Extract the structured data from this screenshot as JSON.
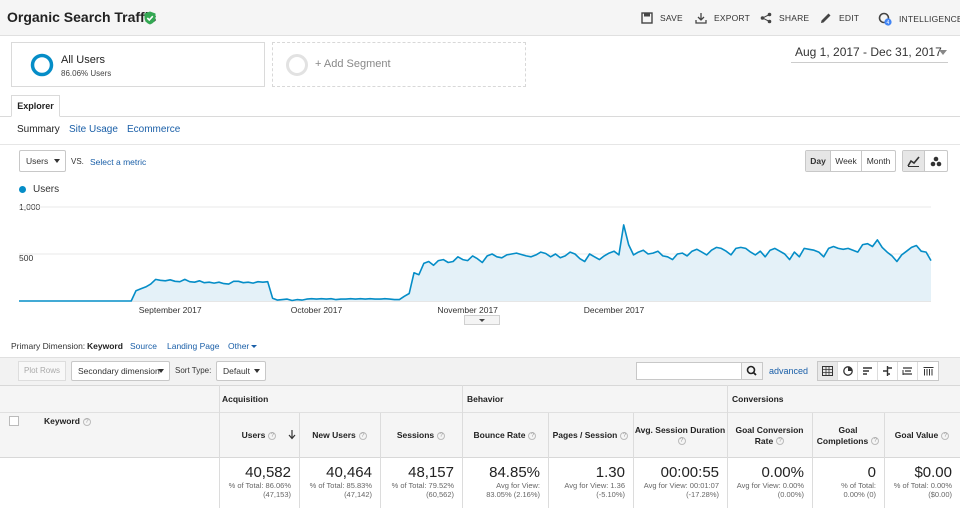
{
  "header": {
    "title": "Organic Search Traffic",
    "actions": [
      {
        "label": "SAVE",
        "icon": "save-icon"
      },
      {
        "label": "EXPORT",
        "icon": "export-icon"
      },
      {
        "label": "SHARE",
        "icon": "share-icon"
      },
      {
        "label": "EDIT",
        "icon": "pencil-icon"
      },
      {
        "label": "INTELLIGENCE",
        "icon": "intelligence-icon",
        "badge": "4"
      }
    ]
  },
  "segments": {
    "active": {
      "name": "All Users",
      "sub": "86.06% Users"
    },
    "add_label": "+ Add Segment"
  },
  "date_range": "Aug 1, 2017 - Dec 31, 2017",
  "tabs": {
    "explorer": "Explorer",
    "subtabs": [
      "Summary",
      "Site Usage",
      "Ecommerce"
    ]
  },
  "chart_controls": {
    "metric": "Users",
    "vs": "VS.",
    "select_metric": "Select a metric",
    "granularity": [
      "Day",
      "Week",
      "Month"
    ],
    "selected_granularity": "Day"
  },
  "chart_data": {
    "type": "area",
    "series": [
      {
        "name": "Users",
        "color": "#058dc7"
      }
    ],
    "y_ticks": [
      "1,000",
      "500"
    ],
    "x_ticks": [
      "September 2017",
      "October 2017",
      "November 2017",
      "December 2017"
    ],
    "ylim": [
      0,
      1000
    ],
    "x_start": "2017-08-01",
    "daily_values": [
      0,
      0,
      0,
      0,
      0,
      0,
      0,
      0,
      0,
      0,
      0,
      0,
      0,
      0,
      0,
      0,
      0,
      0,
      0,
      0,
      0,
      0,
      0,
      0,
      110,
      130,
      150,
      180,
      230,
      220,
      215,
      225,
      210,
      205,
      230,
      205,
      200,
      215,
      195,
      200,
      190,
      200,
      185,
      180,
      210,
      210,
      195,
      200,
      190,
      205,
      200,
      205,
      30,
      10,
      15,
      20,
      5,
      15,
      10,
      20,
      25,
      20,
      25,
      20,
      25,
      15,
      20,
      20,
      25,
      20,
      25,
      20,
      25,
      20,
      20,
      25,
      20,
      15,
      15,
      50,
      80,
      300,
      280,
      400,
      420,
      380,
      430,
      440,
      410,
      420,
      470,
      440,
      430,
      480,
      450,
      410,
      480,
      500,
      470,
      460,
      490,
      500,
      510,
      495,
      480,
      470,
      490,
      520,
      505,
      470,
      500,
      460,
      480,
      520,
      500,
      450,
      420,
      500,
      470,
      440,
      480,
      510,
      530,
      490,
      810,
      600,
      490,
      520,
      540,
      500,
      510,
      530,
      480,
      470,
      440,
      500,
      510,
      480,
      530,
      550,
      520,
      490,
      540,
      570,
      560,
      530,
      490,
      560,
      570,
      560,
      520,
      490,
      530,
      470,
      540,
      560,
      530,
      500,
      440,
      520,
      470,
      560,
      550,
      540,
      520,
      470,
      560,
      580,
      560,
      550,
      560,
      540,
      520,
      600,
      610,
      580,
      650,
      570,
      520,
      480,
      420,
      490,
      530,
      570,
      590,
      530,
      520,
      430
    ]
  },
  "primary_dimension": {
    "label": "Primary Dimension:",
    "options": [
      "Keyword",
      "Source",
      "Landing Page",
      "Other"
    ],
    "selected": "Keyword"
  },
  "table_toolbar": {
    "plot_rows": "Plot Rows",
    "secondary_dimension": "Secondary dimension",
    "sort_type_label": "Sort Type:",
    "sort_type_value": "Default",
    "advanced": "advanced"
  },
  "table": {
    "dimension_header": "Keyword",
    "groups": [
      "Acquisition",
      "Behavior",
      "Conversions"
    ],
    "columns": [
      {
        "label": "Users",
        "value": "40,582",
        "sub1": "% of Total: 86.06%",
        "sub2": "(47,153)"
      },
      {
        "label": "New Users",
        "value": "40,464",
        "sub1": "% of Total: 85.83%",
        "sub2": "(47,142)"
      },
      {
        "label": "Sessions",
        "value": "48,157",
        "sub1": "% of Total: 79.52%",
        "sub2": "(60,562)"
      },
      {
        "label": "Bounce Rate",
        "value": "84.85%",
        "sub1": "Avg for View:",
        "sub2": "83.05% (2.16%)"
      },
      {
        "label": "Pages / Session",
        "value": "1.30",
        "sub1": "Avg for View: 1.36",
        "sub2": "(-5.10%)"
      },
      {
        "label": "Avg. Session Duration",
        "value": "00:00:55",
        "sub1": "Avg for View: 00:01:07",
        "sub2": "(-17.28%)"
      },
      {
        "label": "Goal Conversion Rate",
        "value": "0.00%",
        "sub1": "Avg for View: 0.00%",
        "sub2": "(0.00%)"
      },
      {
        "label": "Goal Completions",
        "value": "0",
        "sub1": "% of Total:",
        "sub2": "0.00% (0)"
      },
      {
        "label": "Goal Value",
        "value": "$0.00",
        "sub1": "% of Total: 0.00%",
        "sub2": "($0.00)"
      }
    ]
  },
  "colors": {
    "accent": "#058dc7",
    "area_fill": "#e4f1f8",
    "link": "#1a5fa8",
    "verified": "#34a853"
  }
}
